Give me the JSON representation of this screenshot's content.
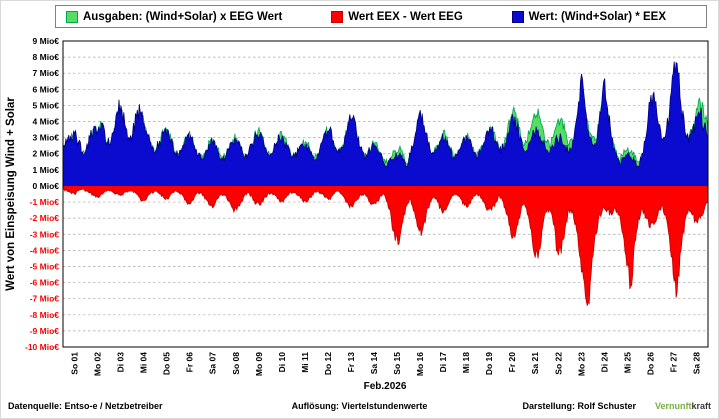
{
  "chart_data": {
    "type": "area",
    "title": "",
    "xlabel": "Feb.2026",
    "ylabel": "Wert von Einspeisung Wind + Solar",
    "y_unit": "Mio€",
    "ylim": [
      -10,
      9
    ],
    "grid": true,
    "legend_position": "top",
    "resolution": "Viertelstundenwerte",
    "samples_per_day": 6,
    "colors": {
      "negative_tick": "#FF0000",
      "positive_tick": "#000000"
    },
    "categories": [
      "So 01",
      "Mo 02",
      "Di 03",
      "Mi 04",
      "Do 05",
      "Fr 06",
      "Sa 07",
      "So 08",
      "Mo 09",
      "Di 10",
      "Mi 11",
      "Do 12",
      "Fr 13",
      "Sa 14",
      "So 15",
      "Mo 16",
      "Di 17",
      "Mi 18",
      "Do 19",
      "Fr 20",
      "Sa 21",
      "So 22",
      "Mo 23",
      "Di 24",
      "Mi 25",
      "Do 26",
      "Fr 27",
      "Sa 28"
    ],
    "series": [
      {
        "name": "Ausgaben: (Wind+Solar) x EEG Wert",
        "color": "#56DD63",
        "edge": "#00A651",
        "values_by_day": [
          [
            2.4,
            2.6,
            3.0,
            3.2,
            2.6,
            2.0
          ],
          [
            2.2,
            2.9,
            3.6,
            3.3,
            3.8,
            2.7
          ],
          [
            2.5,
            3.1,
            4.2,
            4.5,
            3.6,
            2.9
          ],
          [
            3.1,
            4.1,
            4.4,
            3.8,
            3.0,
            2.3
          ],
          [
            2.1,
            2.7,
            3.2,
            3.4,
            2.8,
            2.1
          ],
          [
            1.9,
            2.4,
            2.9,
            3.1,
            2.5,
            1.9
          ],
          [
            1.7,
            2.2,
            2.7,
            2.9,
            2.3,
            1.8
          ],
          [
            1.8,
            2.3,
            2.9,
            3.0,
            2.4,
            1.8
          ],
          [
            2.0,
            2.6,
            3.2,
            3.3,
            2.7,
            2.0
          ],
          [
            2.0,
            2.5,
            3.0,
            3.1,
            2.5,
            1.9
          ],
          [
            1.8,
            2.2,
            2.6,
            2.7,
            2.2,
            1.7
          ],
          [
            2.0,
            2.6,
            3.3,
            3.5,
            2.8,
            2.1
          ],
          [
            2.4,
            3.0,
            3.9,
            4.2,
            3.3,
            2.4
          ],
          [
            1.8,
            2.2,
            2.6,
            2.7,
            2.1,
            1.6
          ],
          [
            1.4,
            1.8,
            2.2,
            2.3,
            1.9,
            1.4
          ],
          [
            1.9,
            2.7,
            3.6,
            3.8,
            3.0,
            2.2
          ],
          [
            2.0,
            2.5,
            3.0,
            3.1,
            2.5,
            1.9
          ],
          [
            1.9,
            2.4,
            2.9,
            3.0,
            2.4,
            1.8
          ],
          [
            2.1,
            2.7,
            3.4,
            3.6,
            2.9,
            2.2
          ],
          [
            2.5,
            3.3,
            4.3,
            4.6,
            3.6,
            2.7
          ],
          [
            2.7,
            3.5,
            4.5,
            4.8,
            3.8,
            2.8
          ],
          [
            2.4,
            3.1,
            4.0,
            4.2,
            3.4,
            2.5
          ],
          [
            2.7,
            3.6,
            5.0,
            4.8,
            3.8,
            3.0
          ],
          [
            2.9,
            4.0,
            5.2,
            4.3,
            2.9,
            2.2
          ],
          [
            1.6,
            1.9,
            2.2,
            2.1,
            1.8,
            1.5
          ],
          [
            1.9,
            2.9,
            4.2,
            4.6,
            3.6,
            2.7
          ],
          [
            2.9,
            3.9,
            5.2,
            5.6,
            4.4,
            3.3
          ],
          [
            2.9,
            3.7,
            4.8,
            5.2,
            4.2,
            3.5
          ]
        ]
      },
      {
        "name": "Wert EEX - Wert EEG",
        "color": "#FF0000",
        "edge": "#C00000",
        "values_by_day": [
          [
            -0.2,
            -0.3,
            -0.4,
            -0.5,
            -0.3,
            -0.2
          ],
          [
            -0.3,
            -0.4,
            -0.6,
            -0.7,
            -0.5,
            -0.3
          ],
          [
            -0.3,
            -0.4,
            -0.5,
            -0.6,
            -0.4,
            -0.3
          ],
          [
            -0.3,
            -0.5,
            -0.8,
            -0.9,
            -0.6,
            -0.4
          ],
          [
            -0.3,
            -0.5,
            -0.7,
            -0.8,
            -0.5,
            -0.3
          ],
          [
            -0.4,
            -0.6,
            -1.0,
            -1.1,
            -0.7,
            -0.4
          ],
          [
            -0.5,
            -0.8,
            -1.2,
            -1.3,
            -0.8,
            -0.5
          ],
          [
            -0.6,
            -0.9,
            -1.4,
            -1.5,
            -1.0,
            -0.6
          ],
          [
            -0.4,
            -0.7,
            -1.1,
            -1.2,
            -0.8,
            -0.5
          ],
          [
            -0.4,
            -0.6,
            -0.9,
            -1.0,
            -0.6,
            -0.4
          ],
          [
            -0.4,
            -0.6,
            -0.9,
            -1.0,
            -0.7,
            -0.4
          ],
          [
            -0.3,
            -0.5,
            -0.7,
            -0.8,
            -0.5,
            -0.3
          ],
          [
            -0.5,
            -0.8,
            -1.2,
            -1.3,
            -0.9,
            -0.5
          ],
          [
            -0.5,
            -0.8,
            -1.1,
            -1.1,
            -0.7,
            -0.5
          ],
          [
            -1.0,
            -2.0,
            -3.4,
            -3.6,
            -2.2,
            -1.2
          ],
          [
            -0.8,
            -1.6,
            -2.6,
            -2.8,
            -1.8,
            -1.0
          ],
          [
            -0.6,
            -1.0,
            -1.5,
            -1.5,
            -1.0,
            -0.6
          ],
          [
            -0.5,
            -0.8,
            -1.2,
            -1.2,
            -0.8,
            -0.5
          ],
          [
            -0.6,
            -1.0,
            -1.5,
            -1.5,
            -1.0,
            -0.6
          ],
          [
            -1.0,
            -1.8,
            -3.0,
            -3.2,
            -2.0,
            -1.2
          ],
          [
            -1.4,
            -2.6,
            -4.2,
            -4.5,
            -2.8,
            -1.6
          ],
          [
            -1.4,
            -2.4,
            -4.0,
            -4.2,
            -2.6,
            -1.5
          ],
          [
            -1.5,
            -2.8,
            -4.5,
            -6.0,
            -7.2,
            -4.5
          ],
          [
            -3.0,
            -1.8,
            -1.3,
            -1.5,
            -1.8,
            -1.4
          ],
          [
            -1.8,
            -3.0,
            -5.0,
            -6.2,
            -3.5,
            -2.0
          ],
          [
            -1.4,
            -2.0,
            -2.6,
            -2.4,
            -1.8,
            -1.2
          ],
          [
            -1.8,
            -3.2,
            -5.5,
            -6.6,
            -4.0,
            -2.2
          ],
          [
            -1.4,
            -1.8,
            -2.2,
            -2.0,
            -1.5,
            -1.0
          ]
        ]
      },
      {
        "name": "Wert: (Wind+Solar) * EEX",
        "color": "#0B0BD0",
        "edge": "#000080",
        "values_by_day": [
          [
            2.5,
            2.7,
            3.1,
            3.3,
            2.7,
            2.1
          ],
          [
            2.3,
            3.0,
            3.7,
            3.4,
            3.9,
            2.8
          ],
          [
            2.6,
            3.3,
            4.6,
            5.0,
            3.8,
            3.0
          ],
          [
            3.2,
            4.3,
            4.6,
            3.9,
            3.1,
            2.3
          ],
          [
            2.2,
            2.8,
            3.3,
            3.5,
            2.9,
            2.1
          ],
          [
            1.9,
            2.5,
            3.0,
            3.1,
            2.5,
            1.9
          ],
          [
            1.7,
            2.2,
            2.6,
            2.8,
            2.2,
            1.7
          ],
          [
            1.8,
            2.2,
            2.7,
            2.8,
            2.3,
            1.7
          ],
          [
            2.0,
            2.6,
            3.1,
            3.2,
            2.6,
            2.0
          ],
          [
            2.0,
            2.5,
            3.0,
            3.0,
            2.4,
            1.9
          ],
          [
            1.8,
            2.2,
            2.6,
            2.6,
            2.1,
            1.6
          ],
          [
            2.0,
            2.7,
            3.4,
            3.5,
            2.8,
            2.1
          ],
          [
            2.4,
            3.1,
            4.0,
            4.2,
            3.3,
            2.4
          ],
          [
            1.8,
            2.1,
            2.5,
            2.5,
            2.0,
            1.5
          ],
          [
            1.3,
            1.6,
            1.8,
            1.9,
            1.6,
            1.2
          ],
          [
            2.0,
            2.9,
            4.2,
            4.5,
            3.3,
            2.3
          ],
          [
            2.0,
            2.5,
            2.9,
            3.0,
            2.4,
            1.8
          ],
          [
            1.9,
            2.4,
            2.9,
            2.9,
            2.3,
            1.8
          ],
          [
            2.1,
            2.7,
            3.4,
            3.5,
            2.8,
            2.1
          ],
          [
            2.4,
            3.1,
            4.0,
            4.3,
            3.3,
            2.4
          ],
          [
            2.2,
            2.7,
            3.3,
            3.5,
            2.8,
            2.2
          ],
          [
            2.0,
            2.4,
            2.9,
            3.0,
            2.5,
            2.0
          ],
          [
            2.8,
            4.2,
            6.5,
            5.4,
            3.4,
            2.6
          ],
          [
            2.6,
            4.6,
            6.5,
            4.8,
            3.0,
            2.1
          ],
          [
            1.5,
            1.7,
            1.9,
            1.8,
            1.5,
            1.2
          ],
          [
            2.0,
            3.1,
            5.2,
            5.8,
            4.0,
            2.8
          ],
          [
            3.1,
            4.5,
            7.0,
            7.6,
            5.0,
            3.5
          ],
          [
            2.7,
            3.3,
            4.3,
            4.6,
            3.7,
            3.1
          ]
        ]
      }
    ]
  },
  "footer": {
    "source_label": "Datenquelle:  Entso-e  / Netzbetreiber",
    "resolution_label": "Auflösung: Viertelstundenwerte",
    "credit_label": "Darstellung:  Rolf Schuster",
    "logo_green": "Vernunft",
    "logo_dark": "kraft",
    "logo_green_color": "#76B043",
    "logo_dark_color": "#3A3A3A"
  }
}
